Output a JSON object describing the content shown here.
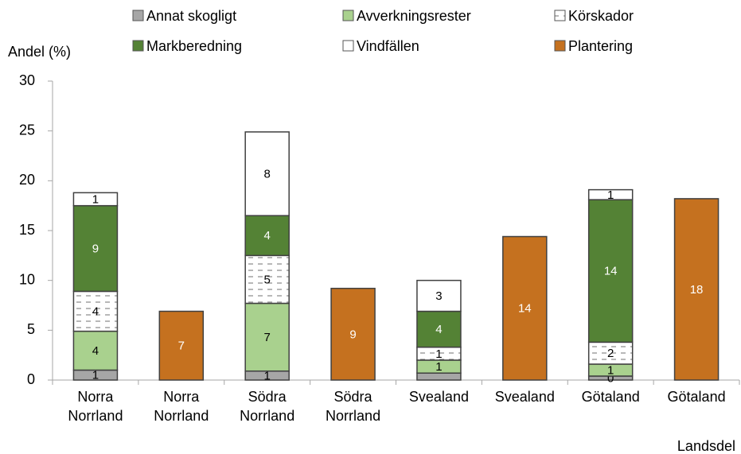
{
  "chart_data": {
    "type": "stacked_bar",
    "y_label": "Andel (%)",
    "x_label": "Landsdel",
    "categories": [
      "Norra Norrland",
      "Norra Norrland",
      "Södra Norrland",
      "Södra Norrland",
      "Svealand",
      "Svealand",
      "Götaland",
      "Götaland"
    ],
    "ylim": [
      0,
      30
    ],
    "yticks": [
      0,
      5,
      10,
      15,
      20,
      25,
      30
    ],
    "series": [
      {
        "name": "Annat skogligt",
        "color": "#a6a6a6",
        "values": [
          1.0,
          null,
          0.9,
          null,
          0.7,
          null,
          0.4,
          null
        ],
        "value_labels": [
          "1",
          null,
          "1",
          null,
          null,
          null,
          "0",
          null
        ]
      },
      {
        "name": "Avverkningsrester",
        "color": "#a9d18e",
        "values": [
          3.9,
          null,
          6.8,
          null,
          1.3,
          null,
          1.2,
          null
        ],
        "value_labels": [
          "4",
          null,
          "7",
          null,
          "1",
          null,
          "1",
          null
        ]
      },
      {
        "name": "Körskador",
        "color": "#ffffff",
        "pattern": "dashed",
        "values": [
          4.0,
          null,
          4.8,
          null,
          1.3,
          null,
          2.2,
          null
        ],
        "value_labels": [
          "4",
          null,
          "5",
          null,
          "1",
          null,
          "2",
          null
        ]
      },
      {
        "name": "Markberedning",
        "color": "#548235",
        "values": [
          8.6,
          null,
          4.0,
          null,
          3.6,
          null,
          14.3,
          null
        ],
        "value_labels": [
          "9",
          null,
          "4",
          null,
          "4",
          null,
          "14",
          null
        ]
      },
      {
        "name": "Vindfällen",
        "color": "#ffffff",
        "values": [
          1.3,
          null,
          8.4,
          null,
          3.1,
          null,
          1.0,
          null
        ],
        "value_labels": [
          "1",
          null,
          "8",
          null,
          "3",
          null,
          "1",
          null
        ]
      },
      {
        "name": "Plantering",
        "color": "#c5711f",
        "values": [
          null,
          6.9,
          null,
          9.2,
          null,
          14.4,
          null,
          18.2
        ],
        "value_labels": [
          null,
          "7",
          null,
          "9",
          null,
          "14",
          null,
          "18"
        ]
      }
    ]
  }
}
